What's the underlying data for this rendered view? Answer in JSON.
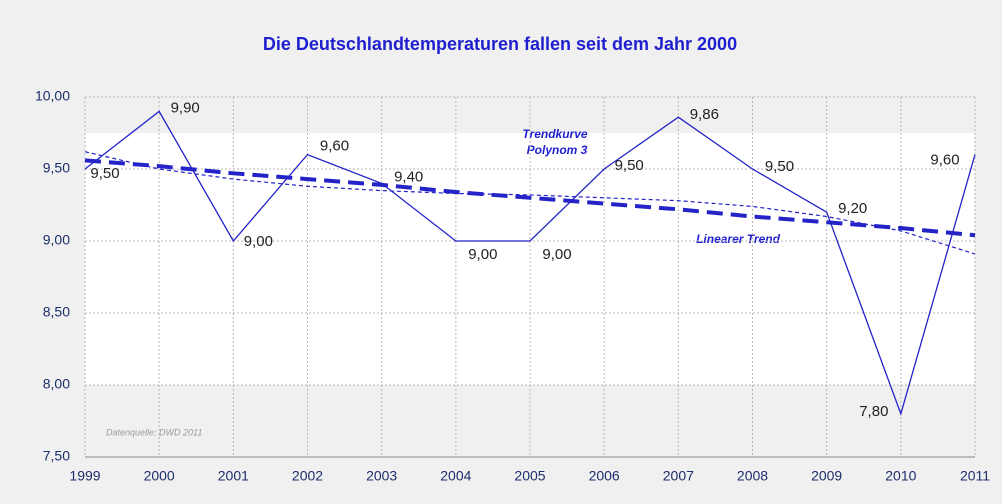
{
  "chart_data": {
    "type": "line",
    "title": "Die Deutschlandtemperaturen fallen seit dem Jahr 2000",
    "x": [
      1999,
      2000,
      2001,
      2002,
      2003,
      2004,
      2005,
      2006,
      2007,
      2008,
      2009,
      2010,
      2011
    ],
    "series": [
      {
        "color": "#2323c8",
        "values": [
          9.5,
          9.9,
          9.0,
          9.6,
          9.4,
          9.0,
          9.0,
          9.5,
          9.86,
          9.5,
          9.2,
          7.8,
          9.6
        ],
        "value_labels": [
          "9,50",
          "9,90",
          "9,00",
          "9,60",
          "9,40",
          "9,00",
          "9,00",
          "9,50",
          "9,86",
          "9,50",
          "9,20",
          "7,80",
          "9,60"
        ]
      },
      {
        "color": "#2323c8",
        "values": [
          9.56,
          9.52,
          9.47,
          9.43,
          9.39,
          9.34,
          9.3,
          9.26,
          9.22,
          9.17,
          9.13,
          9.09,
          9.04
        ]
      },
      {
        "color": "#2323c8",
        "values": [
          9.62,
          9.5,
          9.43,
          9.38,
          9.35,
          9.33,
          9.32,
          9.3,
          9.28,
          9.24,
          9.17,
          9.07,
          8.91
        ]
      }
    ],
    "annotations": [
      "Trendkurve",
      "Polynom 3",
      "Linearer Trend",
      "Datenquelle: DWD 2011"
    ],
    "xlim": [
      1999,
      2011
    ],
    "xticks": [
      1999,
      2000,
      2001,
      2002,
      2003,
      2004,
      2005,
      2006,
      2007,
      2008,
      2009,
      2010,
      2011
    ],
    "ylim": [
      7.5,
      10
    ],
    "yticks": [
      {
        "value": 7.5,
        "label": "7,50"
      },
      {
        "value": 8,
        "label": "8,00"
      },
      {
        "value": 8.5,
        "label": "8,50"
      },
      {
        "value": 9,
        "label": "9,00"
      },
      {
        "value": 9.5,
        "label": "9,50"
      },
      {
        "value": 10,
        "label": "10,00"
      }
    ],
    "grid": true
  }
}
